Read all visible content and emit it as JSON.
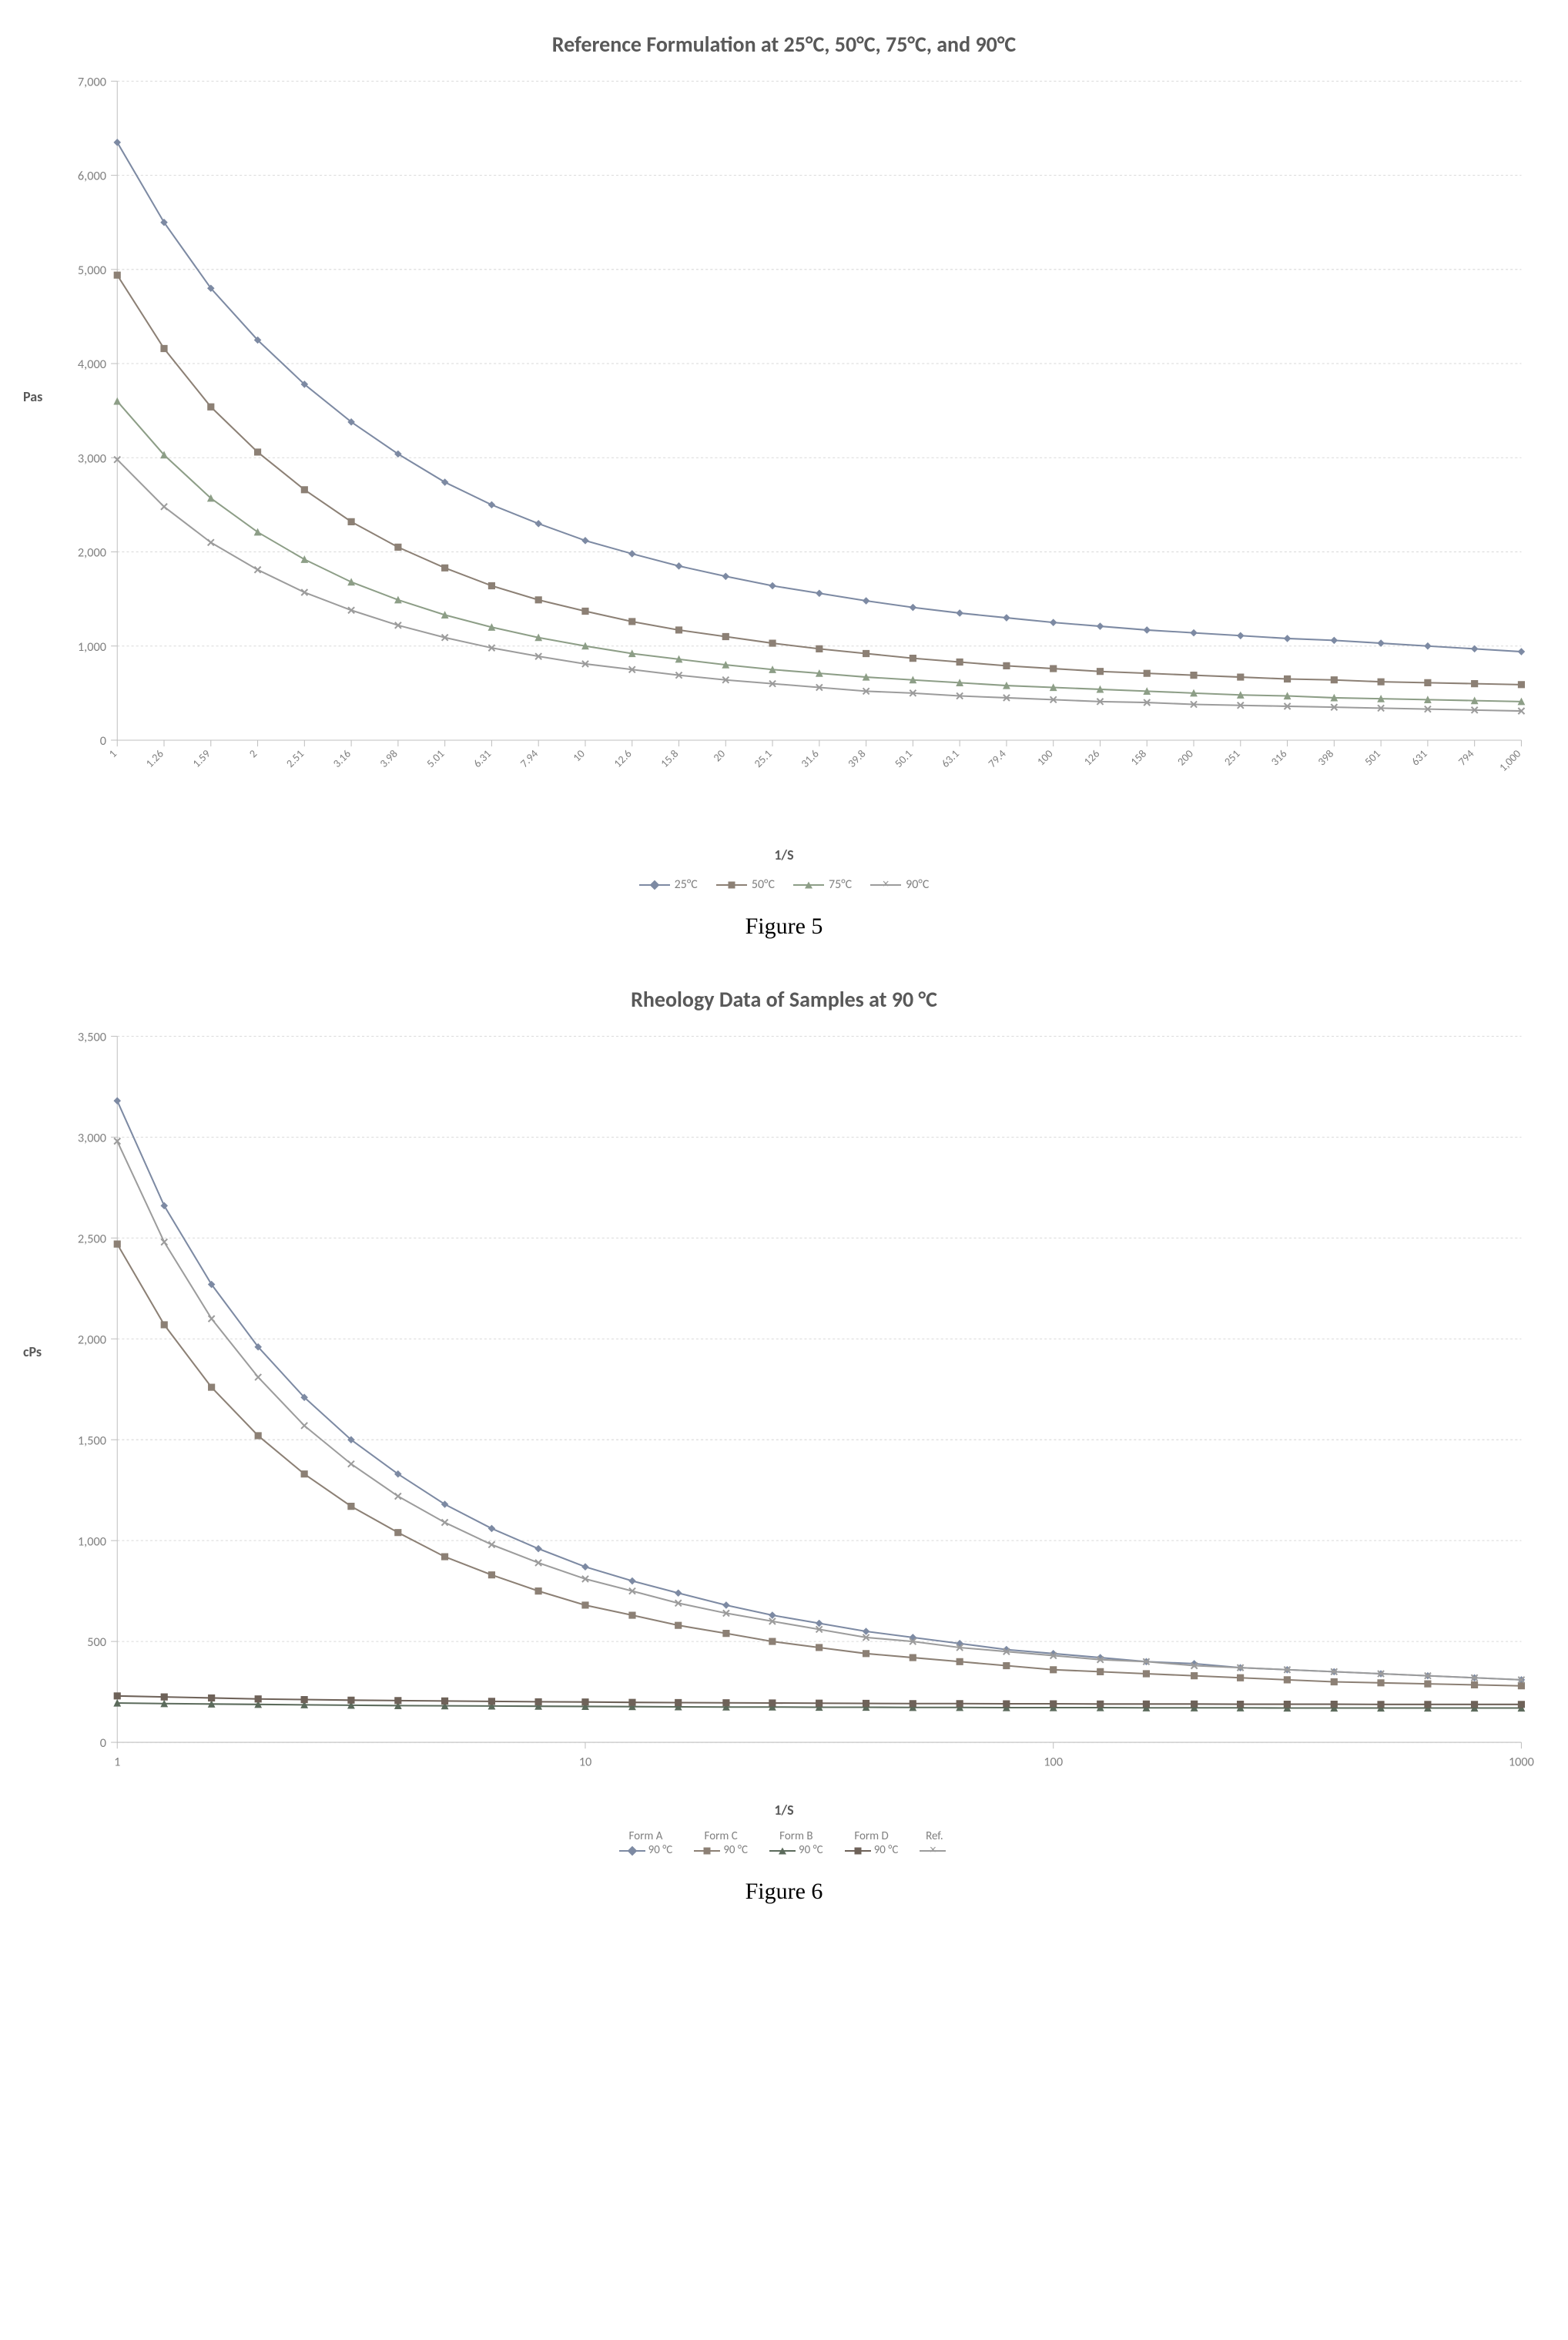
{
  "fig5": {
    "title": "Reference Formulation at 25°C, 50°C, 75°C, and 90°C",
    "ylabel": "Pas",
    "xlabel": "1/S",
    "caption": "Figure 5",
    "type": "line",
    "title_fontsize": 28,
    "label_fontsize": 18,
    "tick_fontsize": 16,
    "background_color": "#ffffff",
    "plot_bg": "#ffffff",
    "grid_color": "#d9d9d9",
    "border_color": "#bfbfbf",
    "xscale": "categorical-log",
    "x_categories": [
      "1",
      "1.26",
      "1.59",
      "2",
      "2.51",
      "3.16",
      "3.98",
      "5.01",
      "6.31",
      "7.94",
      "10",
      "12.6",
      "15.8",
      "20",
      "25.1",
      "31.6",
      "39.8",
      "50.1",
      "63.1",
      "79.4",
      "100",
      "126",
      "158",
      "200",
      "251",
      "316",
      "398",
      "501",
      "631",
      "794",
      "1,000"
    ],
    "ylim": [
      0,
      7000
    ],
    "ytick_step": 1000,
    "ytick_labels": [
      "0",
      "1,000",
      "2,000",
      "3,000",
      "4,000",
      "5,000",
      "6,000",
      "7,000"
    ],
    "line_width": 2,
    "marker_size": 8,
    "series": [
      {
        "name": "25°C",
        "color": "#7d8aa3",
        "marker": "diamond",
        "values": [
          6350,
          5500,
          4800,
          4250,
          3780,
          3380,
          3040,
          2740,
          2500,
          2300,
          2120,
          1980,
          1850,
          1740,
          1640,
          1560,
          1480,
          1410,
          1350,
          1300,
          1250,
          1210,
          1170,
          1140,
          1110,
          1080,
          1060,
          1030,
          1000,
          970,
          940
        ]
      },
      {
        "name": "50°C",
        "color": "#8c8075",
        "marker": "square",
        "values": [
          4940,
          4160,
          3540,
          3060,
          2660,
          2320,
          2050,
          1830,
          1640,
          1490,
          1370,
          1260,
          1170,
          1100,
          1030,
          970,
          920,
          870,
          830,
          790,
          760,
          730,
          710,
          690,
          670,
          650,
          640,
          620,
          610,
          600,
          590
        ]
      },
      {
        "name": "75°C",
        "color": "#8d9e87",
        "marker": "triangle",
        "values": [
          3600,
          3030,
          2570,
          2210,
          1920,
          1680,
          1490,
          1330,
          1200,
          1090,
          1000,
          920,
          860,
          800,
          750,
          710,
          670,
          640,
          610,
          580,
          560,
          540,
          520,
          500,
          480,
          470,
          450,
          440,
          430,
          420,
          410
        ]
      },
      {
        "name": "90°C",
        "color": "#9c9c9c",
        "marker": "x",
        "values": [
          2980,
          2480,
          2100,
          1810,
          1570,
          1380,
          1220,
          1090,
          980,
          890,
          810,
          750,
          690,
          640,
          600,
          560,
          520,
          500,
          470,
          450,
          430,
          410,
          400,
          380,
          370,
          360,
          350,
          340,
          330,
          320,
          310
        ]
      }
    ],
    "legend_labels": [
      "25°C",
      "50°C",
      "75°C",
      "90°C"
    ]
  },
  "fig6": {
    "title": "Rheology Data of Samples at 90 °C",
    "ylabel": "cPs",
    "xlabel": "1/S",
    "caption": "Figure 6",
    "type": "line",
    "title_fontsize": 28,
    "label_fontsize": 18,
    "tick_fontsize": 16,
    "background_color": "#ffffff",
    "plot_bg": "#ffffff",
    "grid_color": "#d9d9d9",
    "border_color": "#bfbfbf",
    "xscale": "log",
    "xlim": [
      1,
      1000
    ],
    "xticks": [
      1,
      10,
      100,
      1000
    ],
    "xtick_labels": [
      "1",
      "10",
      "100",
      "1000"
    ],
    "ylim": [
      0,
      3500
    ],
    "ytick_step": 500,
    "ytick_labels": [
      "0",
      "500",
      "1,000",
      "1,500",
      "2,000",
      "2,500",
      "3,000",
      "3,500"
    ],
    "line_width": 2,
    "marker_size": 8,
    "x_points": [
      1,
      1.26,
      1.59,
      2,
      2.51,
      3.16,
      3.98,
      5.01,
      6.31,
      7.94,
      10,
      12.6,
      15.8,
      20,
      25.1,
      31.6,
      39.8,
      50.1,
      63.1,
      79.4,
      100,
      126,
      158,
      200,
      251,
      316,
      398,
      501,
      631,
      794,
      1000
    ],
    "series": [
      {
        "name": "Form A 90 °C",
        "top": "Form A",
        "bot": "90 °C",
        "color": "#7d8aa3",
        "marker": "diamond",
        "values": [
          3180,
          2660,
          2270,
          1960,
          1710,
          1500,
          1330,
          1180,
          1060,
          960,
          870,
          800,
          740,
          680,
          630,
          590,
          550,
          520,
          490,
          460,
          440,
          420,
          400,
          390,
          370,
          360,
          350,
          340,
          330,
          320,
          310
        ]
      },
      {
        "name": "Form C 90 °C",
        "top": "Form C",
        "bot": "90 °C",
        "color": "#8c8075",
        "marker": "square",
        "values": [
          2470,
          2070,
          1760,
          1520,
          1330,
          1170,
          1040,
          920,
          830,
          750,
          680,
          630,
          580,
          540,
          500,
          470,
          440,
          420,
          400,
          380,
          360,
          350,
          340,
          330,
          320,
          310,
          300,
          295,
          290,
          285,
          280
        ]
      },
      {
        "name": "Form B 90 °C",
        "top": "Form B",
        "bot": "90 °C",
        "color": "#5c6b5c",
        "marker": "triangle",
        "values": [
          195,
          192,
          190,
          188,
          186,
          184,
          182,
          181,
          180,
          179,
          178,
          177,
          176,
          175,
          175,
          174,
          174,
          173,
          173,
          172,
          172,
          172,
          171,
          171,
          171,
          170,
          170,
          170,
          170,
          170,
          170
        ]
      },
      {
        "name": "Form D 90 °C",
        "top": "Form D",
        "bot": "90 °C",
        "color": "#6e6259",
        "marker": "square",
        "values": [
          230,
          225,
          220,
          215,
          212,
          209,
          207,
          205,
          203,
          201,
          200,
          198,
          197,
          196,
          195,
          194,
          193,
          192,
          192,
          191,
          191,
          190,
          190,
          190,
          189,
          189,
          189,
          188,
          188,
          188,
          188
        ]
      },
      {
        "name": "Ref.",
        "top": "Ref.",
        "bot": " ",
        "color": "#9c9c9c",
        "marker": "x",
        "values": [
          2980,
          2480,
          2100,
          1810,
          1570,
          1380,
          1220,
          1090,
          980,
          890,
          810,
          750,
          690,
          640,
          600,
          560,
          520,
          500,
          470,
          450,
          430,
          410,
          400,
          380,
          370,
          360,
          350,
          340,
          330,
          320,
          310
        ]
      }
    ]
  }
}
